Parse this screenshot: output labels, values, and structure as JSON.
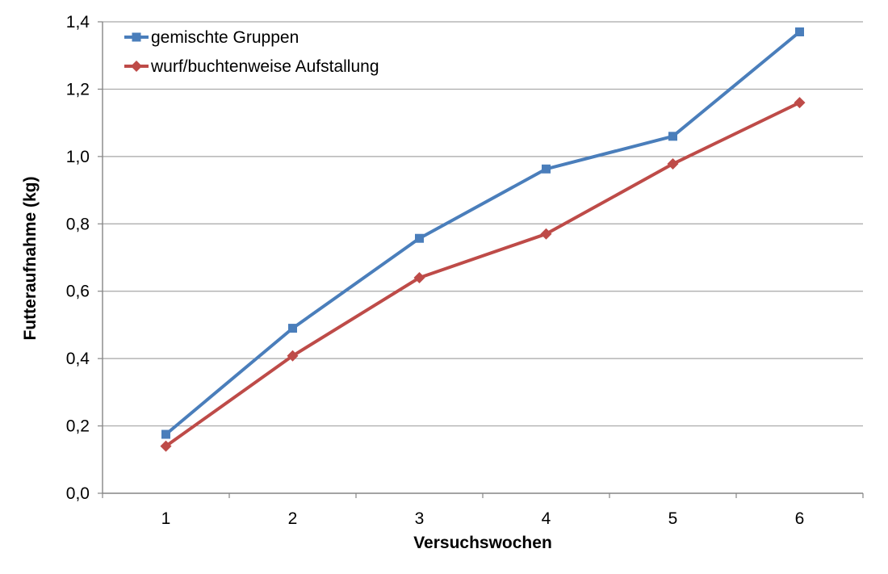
{
  "chart_data": {
    "type": "line",
    "title": "",
    "xlabel": "Versuchswochen",
    "ylabel": "Futteraufnahme (kg)",
    "categories": [
      "1",
      "2",
      "3",
      "4",
      "5",
      "6"
    ],
    "ylim": [
      0,
      1.4
    ],
    "yticks": [
      "0,0",
      "0,2",
      "0,4",
      "0,6",
      "0,8",
      "1,0",
      "1,2",
      "1,4"
    ],
    "grid": true,
    "legend_position": "top-left",
    "series": [
      {
        "name": "gemischte Gruppen",
        "values": [
          0.175,
          0.49,
          0.757,
          0.963,
          1.06,
          1.37
        ],
        "color": "#4a7ebb",
        "marker": "square"
      },
      {
        "name": "wurf/buchtenweise Aufstallung",
        "values": [
          0.14,
          0.408,
          0.64,
          0.77,
          0.978,
          1.16
        ],
        "color": "#be4b48",
        "marker": "diamond"
      }
    ]
  }
}
